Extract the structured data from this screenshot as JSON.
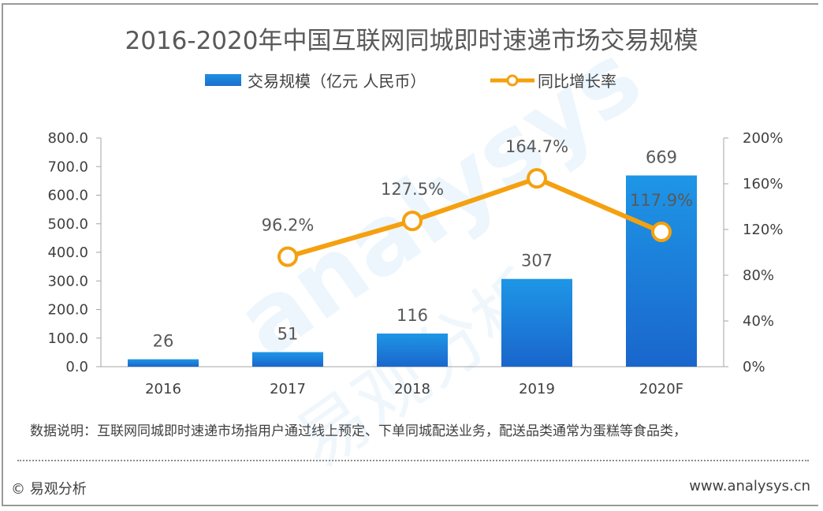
{
  "chart_data": {
    "type": "bar+line",
    "title": "2016-2020年中国互联网同城即时速递市场交易规模",
    "categories": [
      "2016",
      "2017",
      "2018",
      "2019",
      "2020F"
    ],
    "series": [
      {
        "name": "交易规模（亿元 人民币）",
        "type": "bar",
        "axis": "left",
        "values": [
          26,
          51,
          116,
          307,
          669
        ],
        "labels": [
          "26",
          "51",
          "116",
          "307",
          "669"
        ],
        "color": "#1a7fdc"
      },
      {
        "name": "同比增长率",
        "type": "line",
        "axis": "right",
        "values": [
          null,
          96.2,
          127.5,
          164.7,
          117.9
        ],
        "labels": [
          "",
          "96.2%",
          "127.5%",
          "164.7%",
          "117.9%"
        ],
        "color": "#f5a00f"
      }
    ],
    "left_axis": {
      "range": [
        0,
        800
      ],
      "ticks": [
        "0.0",
        "100.0",
        "200.0",
        "300.0",
        "400.0",
        "500.0",
        "600.0",
        "700.0",
        "800.0"
      ]
    },
    "right_axis": {
      "range": [
        0,
        200
      ],
      "ticks": [
        "0%",
        "40%",
        "80%",
        "120%",
        "160%",
        "200%"
      ]
    },
    "grid": false,
    "legend_placement": "top-center"
  },
  "note": "数据说明：互联网同城即时速递市场指用户通过线上预定、下单同城配送业务，配送品类通常为蛋糕等食品类，",
  "footer": {
    "copyright": "© 易观分析",
    "website": "www.analysys.cn"
  },
  "watermark": "analysys 易观分析"
}
